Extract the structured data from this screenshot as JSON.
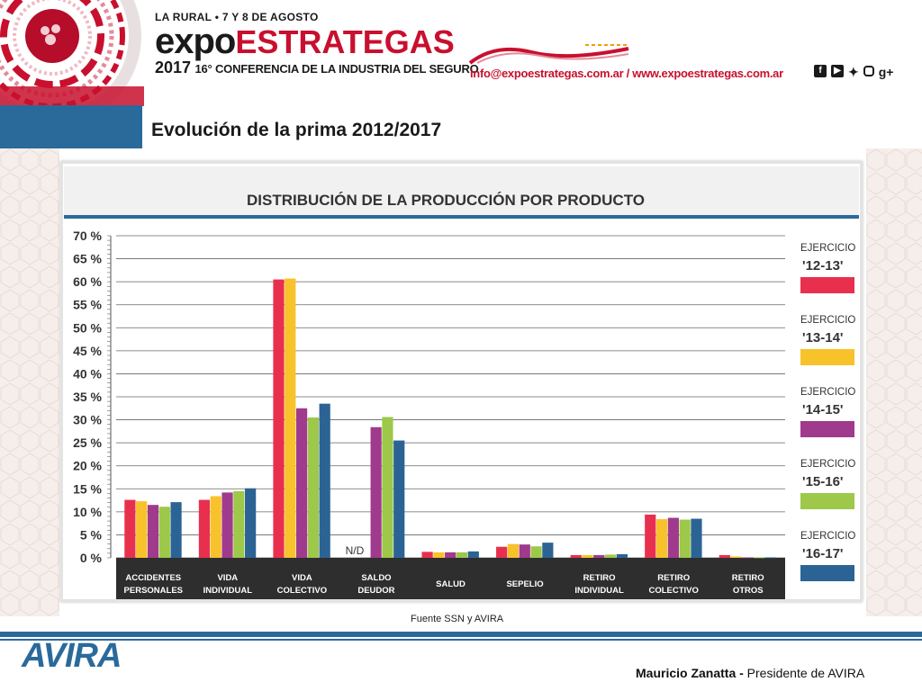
{
  "header": {
    "event_line1": "LA RURAL • 7 Y 8 DE AGOSTO",
    "event_expo": "expo",
    "event_strat": "ESTRATEGAS",
    "event_year": "2017",
    "event_conf": "16° CONFERENCIA DE LA INDUSTRIA DEL SEGURO",
    "contact": "info@expoestrategas.com.ar / www.expoestrategas.com.ar",
    "social_icons": [
      "facebook-icon",
      "youtube-icon",
      "twitter-icon",
      "instagram-icon",
      "googleplus-icon"
    ],
    "social_gplus": "g+"
  },
  "slide_title": "Evolución de la prima 2012/2017",
  "chart_data": {
    "type": "bar",
    "title": "DISTRIBUCIÓN DE LA PRODUCCIÓN POR PRODUCTO",
    "ylim": [
      0,
      70
    ],
    "yticks": [
      "0 %",
      "5 %",
      "10 %",
      "15 %",
      "20 %",
      "25 %",
      "30 %",
      "35 %",
      "40 %",
      "45 %",
      "50 %",
      "55 %",
      "60 %",
      "65 %",
      "70 %"
    ],
    "ytick_values": [
      0,
      5,
      10,
      15,
      20,
      25,
      30,
      35,
      40,
      45,
      50,
      55,
      60,
      65,
      70
    ],
    "grid": true,
    "legend_position": "right",
    "categories": [
      [
        "ACCIDENTES",
        "PERSONALES"
      ],
      [
        "VIDA",
        "INDIVIDUAL"
      ],
      [
        "VIDA",
        "COLECTIVO"
      ],
      [
        "SALDO",
        "DEUDOR"
      ],
      [
        "SALUD"
      ],
      [
        "SEPELIO"
      ],
      [
        "RETIRO",
        "INDIVIDUAL"
      ],
      [
        "RETIRO",
        "COLECTIVO"
      ],
      [
        "RETIRO",
        "OTROS"
      ]
    ],
    "annotation": {
      "text": "N/D",
      "category_index": 3
    },
    "series": [
      {
        "name": "'12-13'",
        "legend_prefix": "EJERCICIO",
        "color": "#e8304e",
        "values": [
          12.6,
          12.6,
          60.5,
          null,
          1.3,
          2.4,
          0.6,
          9.4,
          0.6
        ]
      },
      {
        "name": "'13-14'",
        "legend_prefix": "EJERCICIO",
        "color": "#f8c22a",
        "values": [
          12.3,
          13.4,
          60.7,
          null,
          1.2,
          3.0,
          0.6,
          8.4,
          0.3
        ]
      },
      {
        "name": "'14-15'",
        "legend_prefix": "EJERCICIO",
        "color": "#a03a8c",
        "values": [
          11.5,
          14.2,
          32.5,
          28.4,
          1.2,
          2.9,
          0.6,
          8.7,
          0.1
        ]
      },
      {
        "name": "'15-16'",
        "legend_prefix": "EJERCICIO",
        "color": "#9dc84a",
        "values": [
          11.1,
          14.5,
          30.5,
          30.6,
          1.2,
          2.5,
          0.7,
          8.3,
          0.1
        ]
      },
      {
        "name": "'16-17'",
        "legend_prefix": "EJERCICIO",
        "color": "#2b6494",
        "values": [
          12.1,
          15.1,
          33.5,
          25.5,
          1.4,
          3.3,
          0.8,
          8.5,
          0.1
        ]
      }
    ]
  },
  "source": "Fuente SSN y AVIRA",
  "footer": {
    "logo": "AVIRA",
    "presenter_name": "Mauricio Zanatta -",
    "presenter_role": " Presidente de AVIRA"
  }
}
